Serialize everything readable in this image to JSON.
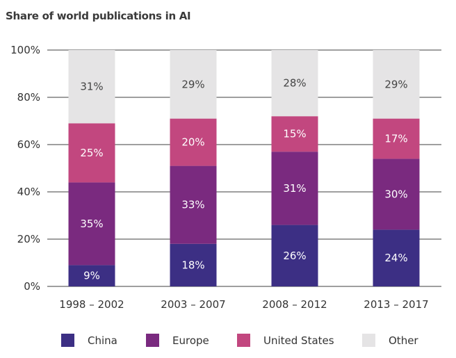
{
  "chart_data": {
    "type": "bar",
    "stacked": true,
    "title": "Share of world publications in AI",
    "xlabel": "",
    "ylabel": "",
    "ylim": [
      0,
      100
    ],
    "yticks": [
      "0%",
      "20%",
      "40%",
      "60%",
      "80%",
      "100%"
    ],
    "categories": [
      "1998 – 2002",
      "2003 – 2007",
      "2008 – 2012",
      "2013 – 2017"
    ],
    "series": [
      {
        "name": "China",
        "color": "#3c2f84",
        "values": [
          9,
          18,
          26,
          24
        ],
        "labels": [
          "9%",
          "18%",
          "26%",
          "24%"
        ]
      },
      {
        "name": "Europe",
        "color": "#7a2a7f",
        "values": [
          35,
          33,
          31,
          30
        ],
        "labels": [
          "35%",
          "33%",
          "31%",
          "30%"
        ]
      },
      {
        "name": "United States",
        "color": "#c2477f",
        "values": [
          25,
          20,
          15,
          17
        ],
        "labels": [
          "25%",
          "20%",
          "15%",
          "17%"
        ]
      },
      {
        "name": "Other",
        "color": "#e5e4e5",
        "values": [
          31,
          29,
          28,
          29
        ],
        "labels": [
          "31%",
          "29%",
          "28%",
          "29%"
        ]
      }
    ],
    "grid": true,
    "legend": "bottom"
  }
}
